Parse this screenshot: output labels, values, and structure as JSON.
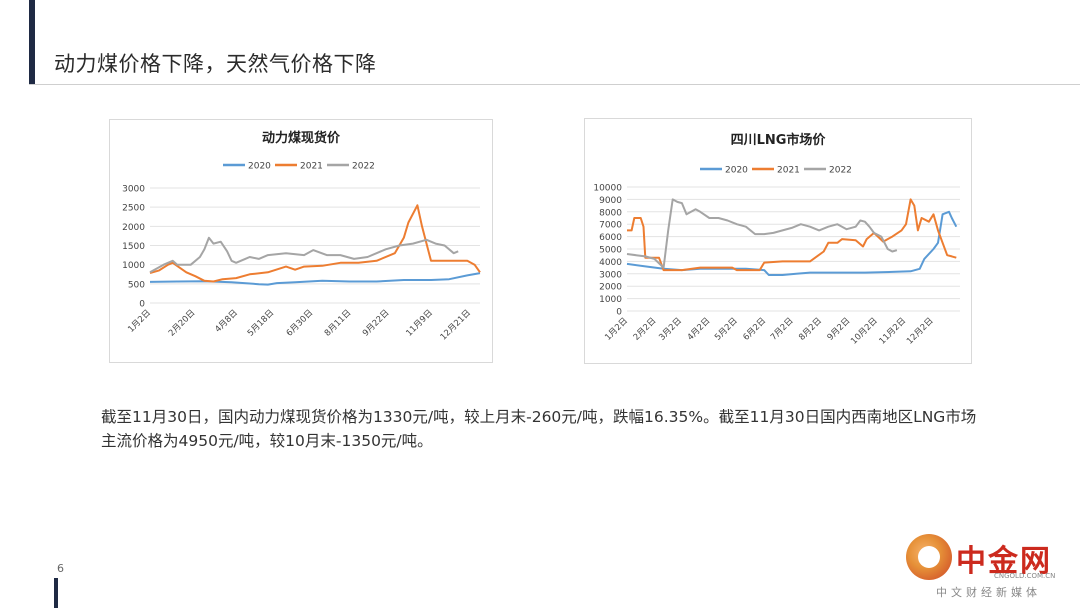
{
  "slide": {
    "title": "动力煤价格下降，天然气价格下降",
    "caption": "截至11月30日，国内动力煤现货价格为1330元/吨，较上月末-260元/吨，跌幅16.35%。截至11月30日国内西南地区LNG市场主流价格为4950元/吨，较10月末-1350元/吨。",
    "page_number": "6"
  },
  "brand": {
    "name": "中金网",
    "url": "CNGOLD.COM.CN",
    "tagline": "中文财经新媒体"
  },
  "chart_data": [
    {
      "type": "line",
      "title": "动力煤现货价",
      "legend_position": "top-center",
      "grid": "horizontal",
      "ylim": [
        0,
        3000
      ],
      "yticks": [
        "0",
        "500",
        "1000",
        "1500",
        "2000",
        "2500",
        "3000"
      ],
      "xlim": [
        0,
        364
      ],
      "xticks": [
        {
          "label": "1月2日",
          "day": 1
        },
        {
          "label": "2月20日",
          "day": 50
        },
        {
          "label": "4月8日",
          "day": 97
        },
        {
          "label": "5月18日",
          "day": 137
        },
        {
          "label": "6月30日",
          "day": 180
        },
        {
          "label": "8月11日",
          "day": 222
        },
        {
          "label": "9月22日",
          "day": 264
        },
        {
          "label": "11月9日",
          "day": 312
        },
        {
          "label": "12月21日",
          "day": 354
        }
      ],
      "series": [
        {
          "name": "2020",
          "color": "#5b9bd5",
          "points": [
            [
              0,
              550
            ],
            [
              30,
              560
            ],
            [
              60,
              570
            ],
            [
              90,
              540
            ],
            [
              120,
              490
            ],
            [
              130,
              480
            ],
            [
              140,
              520
            ],
            [
              160,
              540
            ],
            [
              190,
              580
            ],
            [
              220,
              560
            ],
            [
              250,
              560
            ],
            [
              280,
              600
            ],
            [
              310,
              600
            ],
            [
              330,
              620
            ],
            [
              350,
              720
            ],
            [
              364,
              780
            ]
          ]
        },
        {
          "name": "2021",
          "color": "#ed7d31",
          "points": [
            [
              0,
              780
            ],
            [
              10,
              850
            ],
            [
              20,
              1000
            ],
            [
              25,
              1050
            ],
            [
              40,
              800
            ],
            [
              50,
              700
            ],
            [
              60,
              580
            ],
            [
              70,
              560
            ],
            [
              80,
              620
            ],
            [
              95,
              650
            ],
            [
              110,
              750
            ],
            [
              130,
              800
            ],
            [
              150,
              950
            ],
            [
              160,
              870
            ],
            [
              170,
              950
            ],
            [
              190,
              970
            ],
            [
              210,
              1050
            ],
            [
              230,
              1050
            ],
            [
              250,
              1100
            ],
            [
              270,
              1300
            ],
            [
              280,
              1700
            ],
            [
              285,
              2100
            ],
            [
              295,
              2550
            ],
            [
              300,
              2000
            ],
            [
              310,
              1100
            ],
            [
              330,
              1100
            ],
            [
              350,
              1100
            ],
            [
              358,
              1000
            ],
            [
              364,
              800
            ]
          ]
        },
        {
          "name": "2022",
          "color": "#a5a5a5",
          "points": [
            [
              0,
              800
            ],
            [
              15,
              1000
            ],
            [
              25,
              1100
            ],
            [
              30,
              1000
            ],
            [
              45,
              1000
            ],
            [
              55,
              1200
            ],
            [
              60,
              1400
            ],
            [
              65,
              1700
            ],
            [
              70,
              1550
            ],
            [
              78,
              1600
            ],
            [
              85,
              1350
            ],
            [
              90,
              1100
            ],
            [
              95,
              1050
            ],
            [
              105,
              1150
            ],
            [
              110,
              1200
            ],
            [
              120,
              1150
            ],
            [
              130,
              1250
            ],
            [
              150,
              1300
            ],
            [
              170,
              1250
            ],
            [
              180,
              1380
            ],
            [
              195,
              1250
            ],
            [
              210,
              1250
            ],
            [
              225,
              1150
            ],
            [
              240,
              1200
            ],
            [
              260,
              1400
            ],
            [
              275,
              1500
            ],
            [
              290,
              1550
            ],
            [
              305,
              1650
            ],
            [
              315,
              1550
            ],
            [
              325,
              1500
            ],
            [
              335,
              1300
            ],
            [
              340,
              1350
            ]
          ]
        }
      ]
    },
    {
      "type": "line",
      "title": "四川LNG市场价",
      "legend_position": "top-center",
      "grid": "horizontal",
      "ylim": [
        0,
        10000
      ],
      "yticks": [
        "0",
        "1000",
        "2000",
        "3000",
        "4000",
        "5000",
        "6000",
        "7000",
        "8000",
        "9000",
        "10000"
      ],
      "xlim": [
        0,
        364
      ],
      "xticks": [
        {
          "label": "1月2日",
          "day": 1
        },
        {
          "label": "2月2日",
          "day": 32
        },
        {
          "label": "3月2日",
          "day": 60
        },
        {
          "label": "4月2日",
          "day": 91
        },
        {
          "label": "5月2日",
          "day": 121
        },
        {
          "label": "6月2日",
          "day": 152
        },
        {
          "label": "7月2日",
          "day": 182
        },
        {
          "label": "8月2日",
          "day": 213
        },
        {
          "label": "9月2日",
          "day": 244
        },
        {
          "label": "10月2日",
          "day": 274
        },
        {
          "label": "11月2日",
          "day": 305
        },
        {
          "label": "12月2日",
          "day": 335
        }
      ],
      "series": [
        {
          "name": "2020",
          "color": "#5b9bd5",
          "points": [
            [
              0,
              3800
            ],
            [
              20,
              3600
            ],
            [
              40,
              3400
            ],
            [
              60,
              3300
            ],
            [
              80,
              3400
            ],
            [
              100,
              3400
            ],
            [
              130,
              3400
            ],
            [
              150,
              3300
            ],
            [
              155,
              2900
            ],
            [
              170,
              2900
            ],
            [
              185,
              3000
            ],
            [
              200,
              3100
            ],
            [
              230,
              3100
            ],
            [
              260,
              3100
            ],
            [
              290,
              3150
            ],
            [
              310,
              3200
            ],
            [
              320,
              3400
            ],
            [
              325,
              4200
            ],
            [
              335,
              5000
            ],
            [
              340,
              5500
            ],
            [
              345,
              7800
            ],
            [
              352,
              8000
            ],
            [
              355,
              7500
            ],
            [
              360,
              6800
            ]
          ]
        },
        {
          "name": "2021",
          "color": "#ed7d31",
          "points": [
            [
              0,
              6500
            ],
            [
              5,
              6500
            ],
            [
              8,
              7500
            ],
            [
              15,
              7500
            ],
            [
              18,
              6800
            ],
            [
              20,
              4300
            ],
            [
              35,
              4300
            ],
            [
              40,
              3300
            ],
            [
              60,
              3300
            ],
            [
              80,
              3500
            ],
            [
              100,
              3500
            ],
            [
              115,
              3500
            ],
            [
              120,
              3300
            ],
            [
              145,
              3300
            ],
            [
              150,
              3900
            ],
            [
              170,
              4000
            ],
            [
              200,
              4000
            ],
            [
              215,
              4800
            ],
            [
              220,
              5500
            ],
            [
              230,
              5500
            ],
            [
              235,
              5800
            ],
            [
              250,
              5700
            ],
            [
              258,
              5200
            ],
            [
              262,
              5800
            ],
            [
              270,
              6300
            ],
            [
              280,
              5600
            ],
            [
              290,
              6000
            ],
            [
              300,
              6500
            ],
            [
              305,
              7000
            ],
            [
              310,
              9000
            ],
            [
              314,
              8500
            ],
            [
              318,
              6500
            ],
            [
              322,
              7500
            ],
            [
              330,
              7200
            ],
            [
              335,
              7800
            ],
            [
              340,
              6500
            ],
            [
              345,
              5500
            ],
            [
              350,
              4500
            ],
            [
              355,
              4400
            ],
            [
              360,
              4300
            ]
          ]
        },
        {
          "name": "2022",
          "color": "#a5a5a5",
          "points": [
            [
              0,
              4600
            ],
            [
              10,
              4500
            ],
            [
              20,
              4400
            ],
            [
              30,
              4200
            ],
            [
              40,
              3500
            ],
            [
              45,
              6500
            ],
            [
              50,
              9000
            ],
            [
              55,
              8800
            ],
            [
              60,
              8700
            ],
            [
              65,
              7800
            ],
            [
              75,
              8200
            ],
            [
              80,
              8000
            ],
            [
              90,
              7500
            ],
            [
              100,
              7500
            ],
            [
              110,
              7300
            ],
            [
              120,
              7000
            ],
            [
              130,
              6800
            ],
            [
              140,
              6200
            ],
            [
              150,
              6200
            ],
            [
              160,
              6300
            ],
            [
              170,
              6500
            ],
            [
              180,
              6700
            ],
            [
              190,
              7000
            ],
            [
              200,
              6800
            ],
            [
              210,
              6500
            ],
            [
              220,
              6800
            ],
            [
              230,
              7000
            ],
            [
              240,
              6600
            ],
            [
              250,
              6800
            ],
            [
              255,
              7300
            ],
            [
              260,
              7200
            ],
            [
              265,
              6800
            ],
            [
              270,
              6300
            ],
            [
              278,
              6000
            ],
            [
              285,
              5000
            ],
            [
              290,
              4800
            ],
            [
              295,
              4900
            ]
          ]
        }
      ]
    }
  ]
}
